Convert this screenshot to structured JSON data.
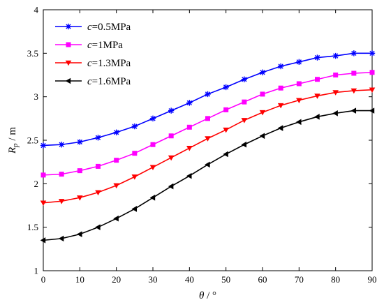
{
  "chart_data": {
    "type": "line",
    "title": "",
    "xlabel": "θ / °",
    "ylabel": "Rp / m",
    "ylabel_main": "R",
    "ylabel_sub": "p",
    "ylabel_unit": " / m",
    "xlabel_main": "θ",
    "xlabel_unit": " / °",
    "xlim": [
      0,
      90
    ],
    "ylim": [
      1,
      4
    ],
    "xticks": [
      0,
      10,
      20,
      30,
      40,
      50,
      60,
      70,
      80,
      90
    ],
    "yticks": [
      1,
      1.5,
      2,
      2.5,
      3,
      3.5,
      4
    ],
    "grid": false,
    "legend_position": "top-left",
    "x": [
      0,
      5,
      10,
      15,
      20,
      25,
      30,
      35,
      40,
      45,
      50,
      55,
      60,
      65,
      70,
      75,
      80,
      85,
      90
    ],
    "series": [
      {
        "name": "c=0.5MPa",
        "name_var": "c",
        "name_rest": "=0.5MPa",
        "color": "#0000ff",
        "marker": "star",
        "values": [
          2.44,
          2.45,
          2.48,
          2.53,
          2.59,
          2.66,
          2.75,
          2.84,
          2.93,
          3.03,
          3.11,
          3.2,
          3.28,
          3.35,
          3.4,
          3.45,
          3.47,
          3.5,
          3.5
        ]
      },
      {
        "name": "c=1MPa",
        "name_var": "c",
        "name_rest": "=1MPa",
        "color": "#ff00ff",
        "marker": "square",
        "values": [
          2.1,
          2.11,
          2.15,
          2.2,
          2.27,
          2.35,
          2.45,
          2.55,
          2.65,
          2.75,
          2.85,
          2.94,
          3.03,
          3.1,
          3.15,
          3.2,
          3.25,
          3.27,
          3.28
        ]
      },
      {
        "name": "c=1.3MPa",
        "name_var": "c",
        "name_rest": "=1.3MPa",
        "color": "#ff0000",
        "marker": "triangle-down",
        "values": [
          1.78,
          1.8,
          1.84,
          1.9,
          1.98,
          2.08,
          2.19,
          2.3,
          2.41,
          2.52,
          2.62,
          2.73,
          2.82,
          2.9,
          2.96,
          3.01,
          3.05,
          3.07,
          3.08
        ]
      },
      {
        "name": "c=1.6MPa",
        "name_var": "c",
        "name_rest": "=1.6MPa",
        "color": "#000000",
        "marker": "triangle-left",
        "values": [
          1.35,
          1.37,
          1.42,
          1.5,
          1.6,
          1.71,
          1.84,
          1.97,
          2.09,
          2.22,
          2.34,
          2.45,
          2.55,
          2.64,
          2.71,
          2.77,
          2.81,
          2.84,
          2.84
        ]
      }
    ]
  }
}
